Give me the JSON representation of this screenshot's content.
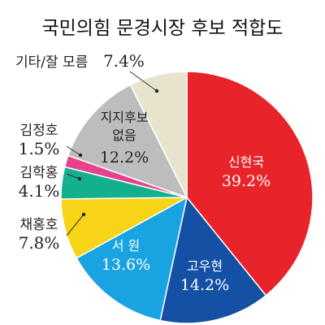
{
  "chart_data": {
    "type": "pie",
    "title": "국민의힘 문경시장 후보 적합도",
    "unit": "%",
    "slices": [
      {
        "name": "신현국",
        "value": 39.2,
        "label": "39.2%",
        "color": "#e8232a"
      },
      {
        "name": "고우현",
        "value": 14.2,
        "label": "14.2%",
        "color": "#1450a3"
      },
      {
        "name": "서 원",
        "value": 13.6,
        "label": "13.6%",
        "color": "#1aa3e1"
      },
      {
        "name": "채홍호",
        "value": 7.8,
        "label": "7.8%",
        "color": "#f7d417"
      },
      {
        "name": "김학홍",
        "value": 4.1,
        "label": "4.1%",
        "color": "#14b08e"
      },
      {
        "name": "김정호",
        "value": 1.5,
        "label": "1.5%",
        "color": "#e4438b"
      },
      {
        "name": "지지후보 없음",
        "name_lines": [
          "지지후보",
          "없음"
        ],
        "value": 12.2,
        "label": "12.2%",
        "color": "#bdbdbd"
      },
      {
        "name": "기타/잘 모름",
        "value": 7.4,
        "label": "7.4%",
        "color": "#e8e3cc"
      }
    ]
  }
}
